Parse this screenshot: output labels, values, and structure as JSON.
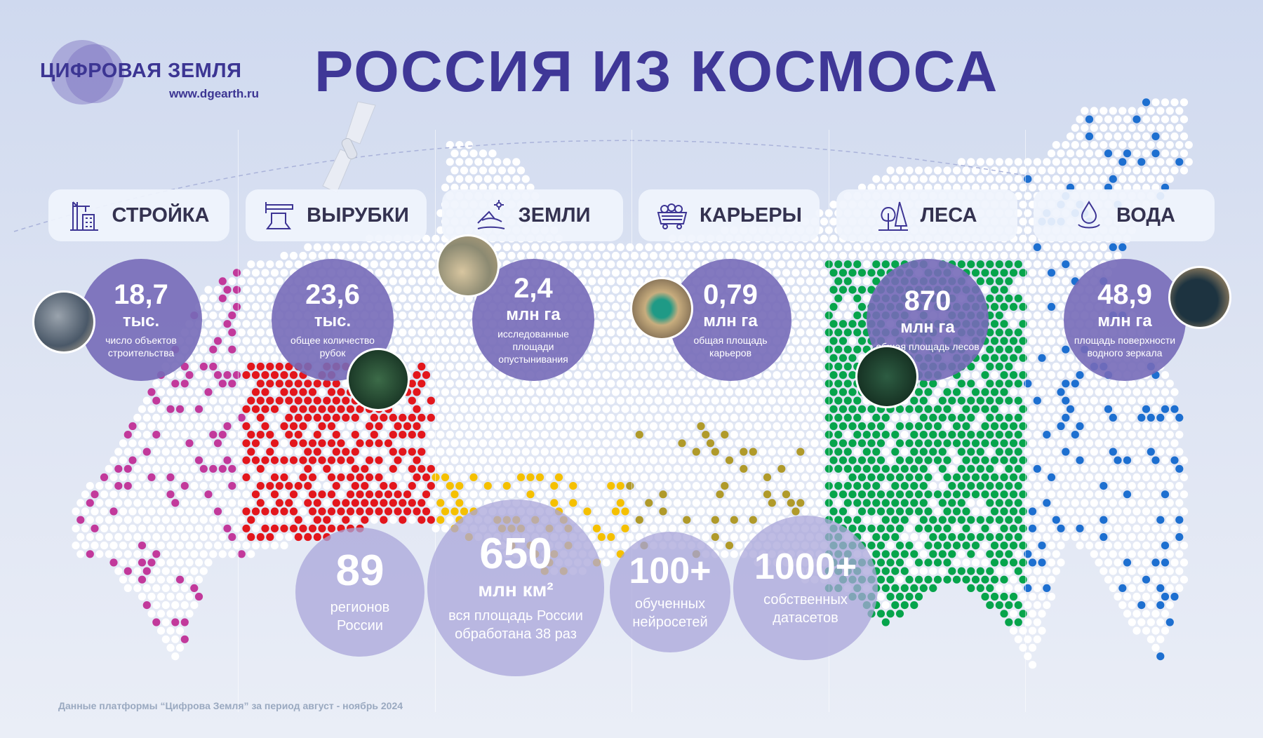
{
  "logo": {
    "name": "ЦИФРОВАЯ ЗЕМЛЯ",
    "url": "www.dgearth.ru"
  },
  "title": "РОССИЯ ИЗ КОСМОСА",
  "categories": [
    {
      "label": "СТРОЙКА",
      "icon": "crane-building-icon",
      "value": "18,7",
      "unit": "тыс.",
      "desc": "число объектов строительства",
      "color": "#c2399b"
    },
    {
      "label": "ВЫРУБКИ",
      "icon": "tree-stump-icon",
      "value": "23,6",
      "unit": "тыс.",
      "desc": "общее количество рубок",
      "color": "#e3161c"
    },
    {
      "label": "ЗЕМЛИ",
      "icon": "desert-dunes-icon",
      "value": "2,4",
      "unit": "млн га",
      "desc": "исследованные площади опустынивания",
      "color": "#f5c000"
    },
    {
      "label": "КАРЬЕРЫ",
      "icon": "mine-cart-icon",
      "value": "0,79",
      "unit": "млн га",
      "desc": "общая площадь карьеров",
      "color": "#b09a2a"
    },
    {
      "label": "ЛЕСА",
      "icon": "forest-trees-icon",
      "value": "870",
      "unit": "млн га",
      "desc": "общая площадь лесов",
      "color": "#06a44b"
    },
    {
      "label": "ВОДА",
      "icon": "water-drop-icon",
      "value": "48,9",
      "unit": "млн га",
      "desc": "площадь поверхности водного зеркала",
      "color": "#1d6fd0"
    }
  ],
  "totals": [
    {
      "value": "89",
      "unit": "",
      "desc1": "регионов",
      "desc2": "России"
    },
    {
      "value": "650",
      "unit": "млн км²",
      "desc1": "вся площадь России",
      "desc2": "обработана 38 раз"
    },
    {
      "value": "100+",
      "unit": "",
      "desc1": "обученных",
      "desc2": "нейросетей"
    },
    {
      "value": "1000+",
      "unit": "",
      "desc1": "собственных",
      "desc2": "датасетов"
    }
  ],
  "footer": "Данные платформы “Цифрова Земля” за период август - ноябрь 2024"
}
